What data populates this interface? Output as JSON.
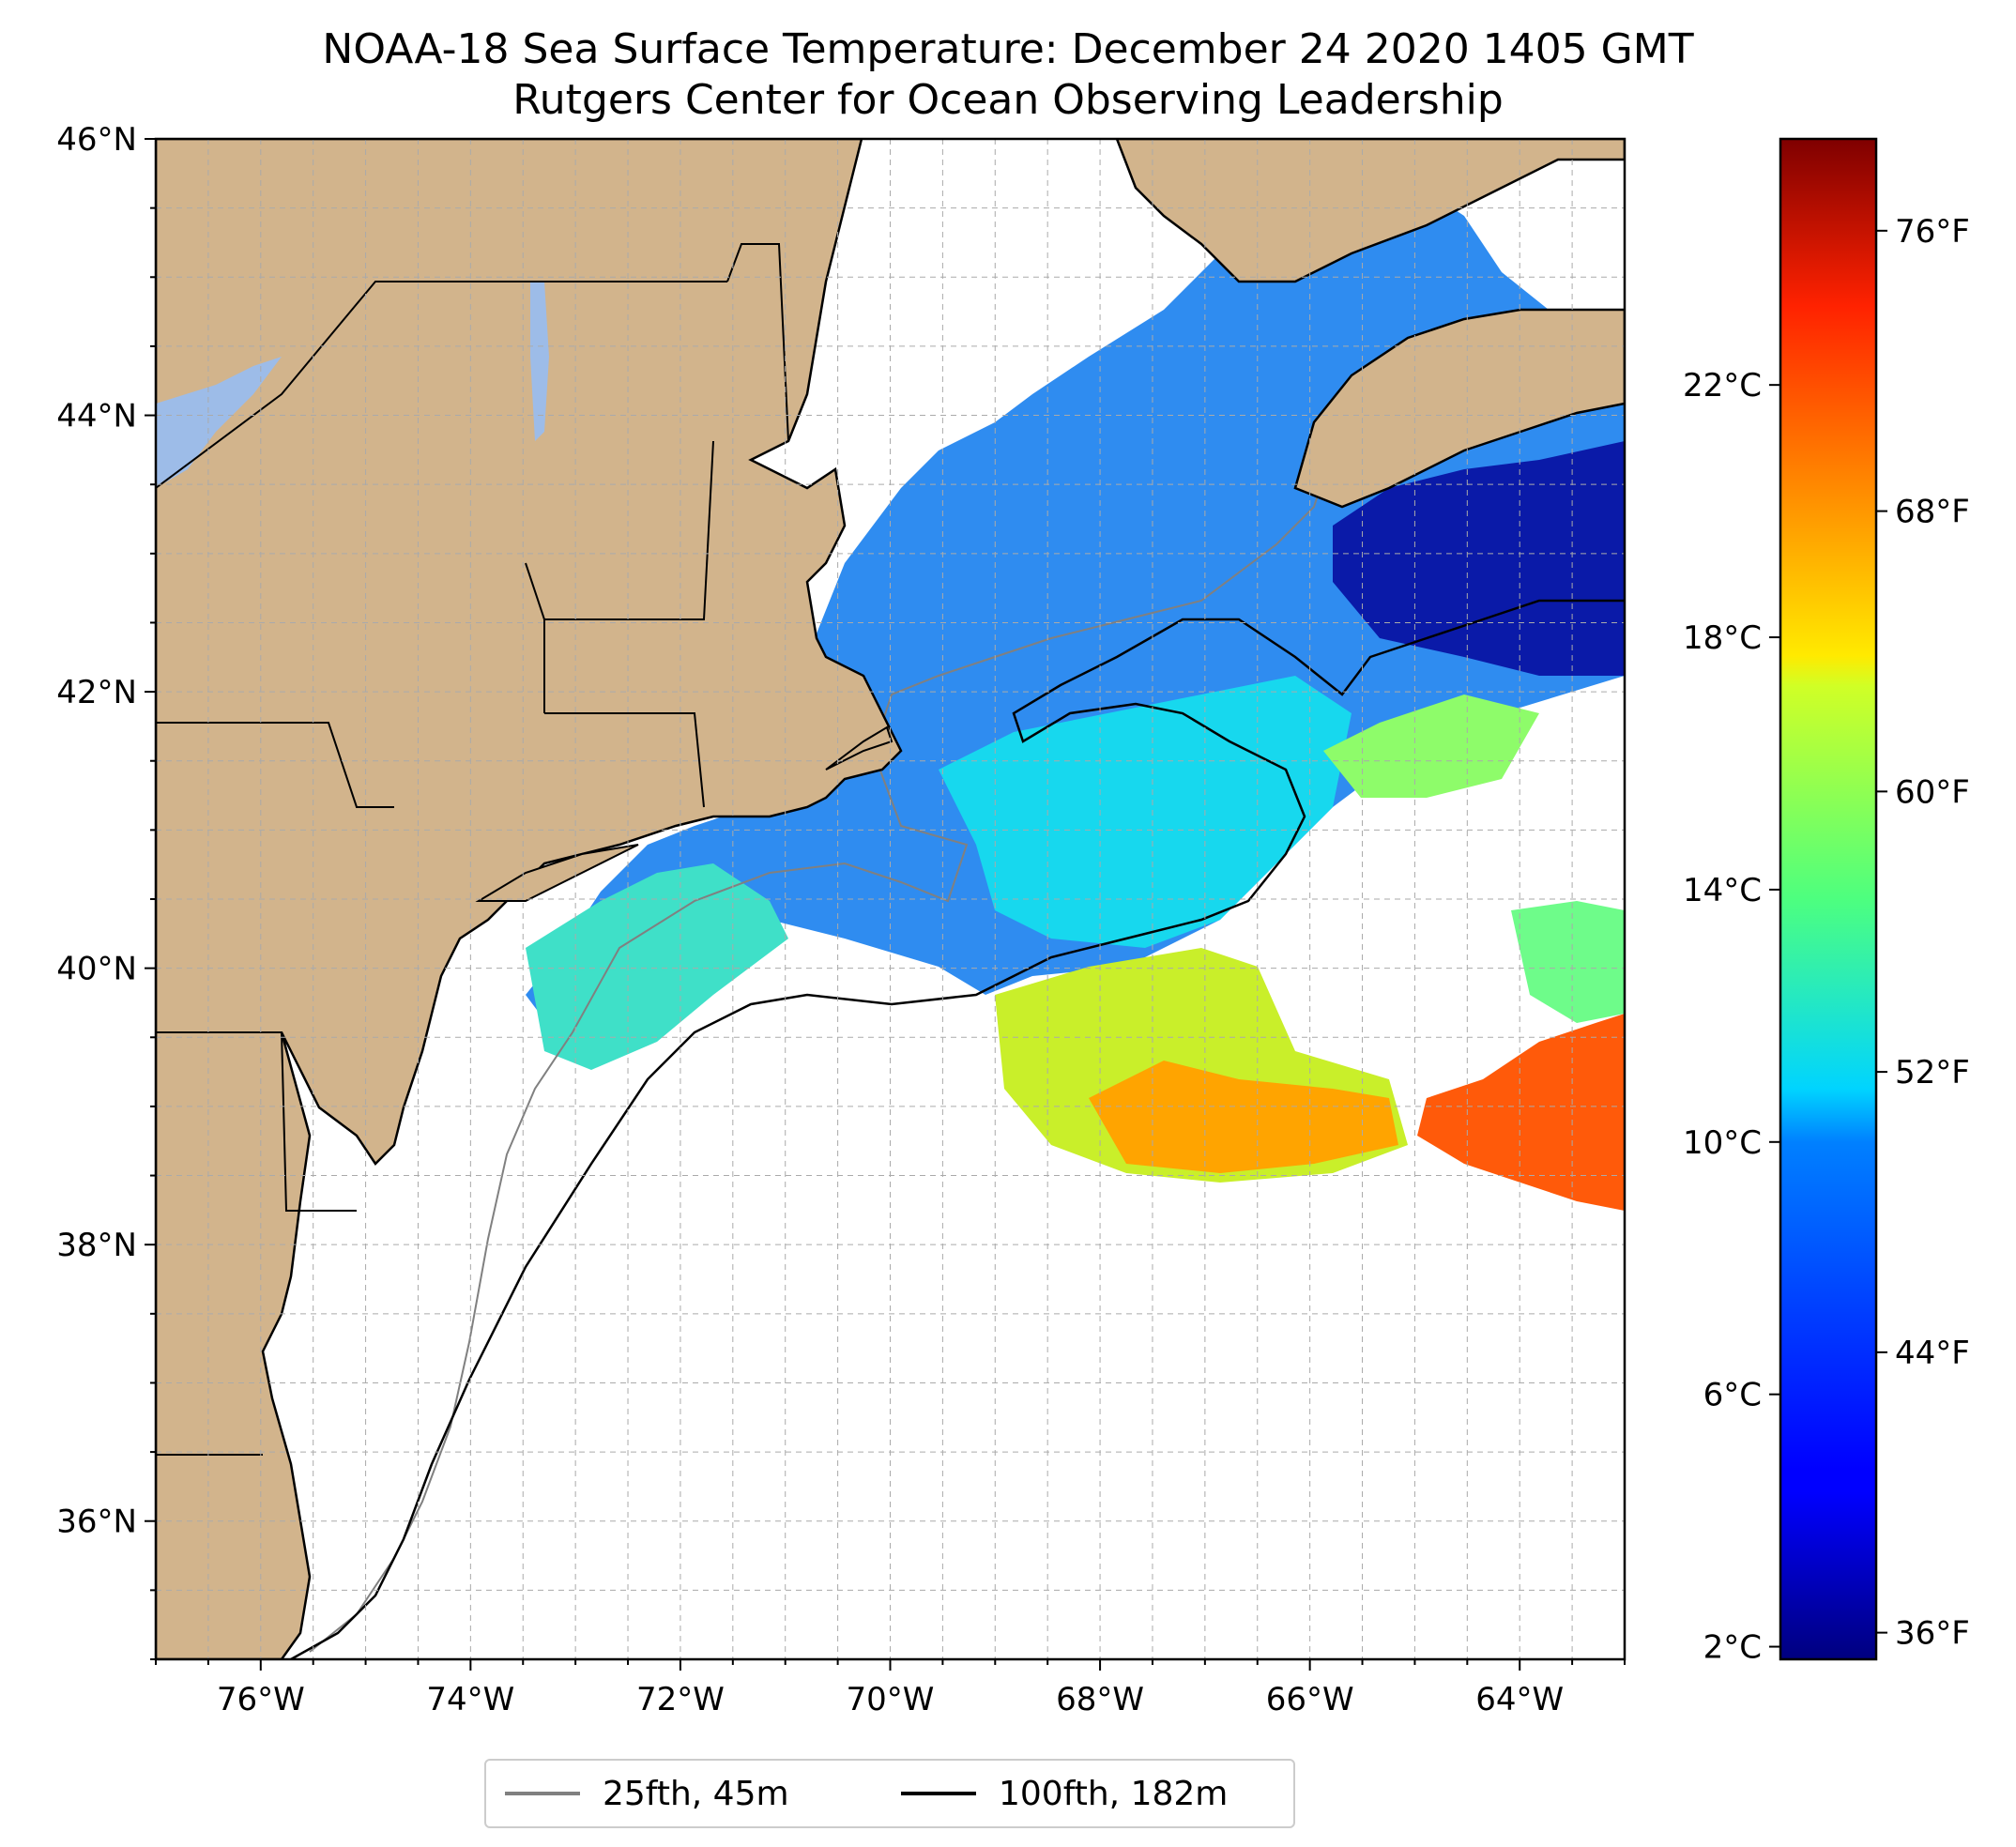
{
  "title": {
    "line1": "NOAA-18 Sea Surface Temperature: December 24 2020 1405 GMT",
    "line2": "Rutgers Center for Ocean Observing Leadership"
  },
  "map": {
    "lon_range": [
      -77,
      -63
    ],
    "lat_range": [
      35,
      46
    ],
    "lat_ticks": [
      {
        "value": 46,
        "label": "46°N"
      },
      {
        "value": 44,
        "label": "44°N"
      },
      {
        "value": 42,
        "label": "42°N"
      },
      {
        "value": 40,
        "label": "40°N"
      },
      {
        "value": 38,
        "label": "38°N"
      },
      {
        "value": 36,
        "label": "36°N"
      }
    ],
    "lon_ticks": [
      {
        "value": -76,
        "label": "76°W"
      },
      {
        "value": -74,
        "label": "74°W"
      },
      {
        "value": -72,
        "label": "72°W"
      },
      {
        "value": -70,
        "label": "70°W"
      },
      {
        "value": -68,
        "label": "68°W"
      },
      {
        "value": -66,
        "label": "66°W"
      },
      {
        "value": -64,
        "label": "64°W"
      }
    ],
    "grid": true,
    "colors": {
      "land": "#d2b48c",
      "lakes": "#9dbce8",
      "grid": "#aaaaaa"
    }
  },
  "legend": {
    "items": [
      {
        "label": "25fth, 45m",
        "color": "#808080"
      },
      {
        "label": "100fth, 182m",
        "color": "#000000"
      }
    ]
  },
  "colorbar": {
    "colormap": "jet",
    "celsius_range": [
      1.8,
      25.9
    ],
    "celsius_ticks": [
      {
        "value": 2,
        "label": "2°C"
      },
      {
        "value": 6,
        "label": "6°C"
      },
      {
        "value": 10,
        "label": "10°C"
      },
      {
        "value": 14,
        "label": "14°C"
      },
      {
        "value": 18,
        "label": "18°C"
      },
      {
        "value": 22,
        "label": "22°C"
      }
    ],
    "fahrenheit_ticks": [
      {
        "value": 36,
        "label": "36°F"
      },
      {
        "value": 44,
        "label": "44°F"
      },
      {
        "value": 52,
        "label": "52°F"
      },
      {
        "value": 60,
        "label": "60°F"
      },
      {
        "value": 68,
        "label": "68°F"
      },
      {
        "value": 76,
        "label": "76°F"
      }
    ]
  }
}
